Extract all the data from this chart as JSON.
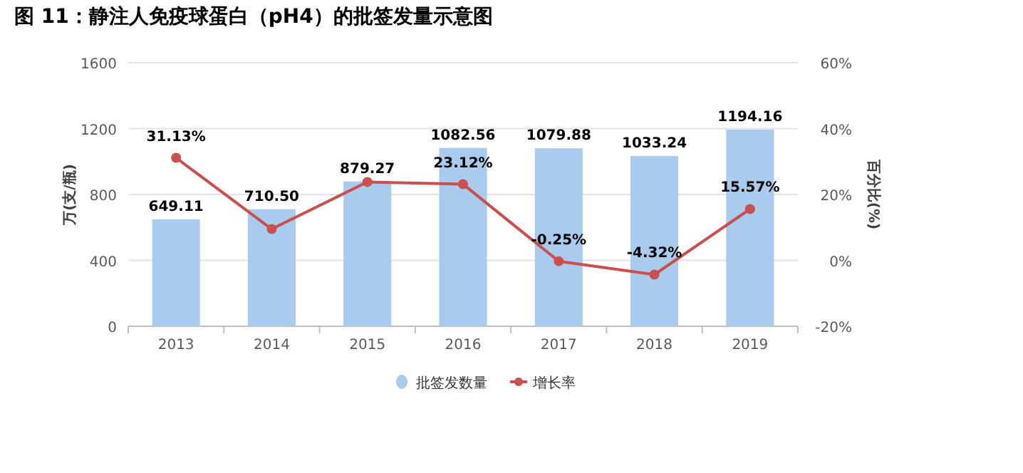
{
  "chart_data": {
    "type": "bar",
    "title": "图 11：静注人免疫球蛋白（pH4）的批签发量示意图",
    "ylabel": "万(支/瓶)",
    "y2label": "百分比(%)",
    "categories": [
      "2013",
      "2014",
      "2015",
      "2016",
      "2017",
      "2018",
      "2019"
    ],
    "series": [
      {
        "name": "批签发数量",
        "color": "#a9cbee",
        "values": [
          649.11,
          710.5,
          879.27,
          1082.56,
          1079.88,
          1033.24,
          1194.16
        ],
        "value_labels": [
          "649.11",
          "710.50",
          "879.27",
          "1082.56",
          "1079.88",
          "1033.24",
          "1194.16"
        ]
      },
      {
        "name": "增长率",
        "type": "line",
        "axis": "y2",
        "color": "#c9504f",
        "values": [
          31.13,
          9.5,
          23.8,
          23.12,
          -0.25,
          -4.32,
          15.57
        ],
        "value_labels": [
          "31.13%",
          null,
          null,
          "23.12%",
          "-0.25%",
          "-4.32%",
          "15.57%"
        ]
      }
    ],
    "ylim": [
      0,
      1600
    ],
    "yticks": [
      0,
      400,
      800,
      1200,
      1600
    ],
    "y2lim": [
      -20,
      60
    ],
    "y2ticks": [
      {
        "value": -20,
        "label": "-20%"
      },
      {
        "value": 0,
        "label": "0%"
      },
      {
        "value": 20,
        "label": "20%"
      },
      {
        "value": 40,
        "label": "40%"
      },
      {
        "value": 60,
        "label": "60%"
      }
    ],
    "grid": "y",
    "legend": "bottom",
    "marker": "circle",
    "line_style": "solid"
  }
}
